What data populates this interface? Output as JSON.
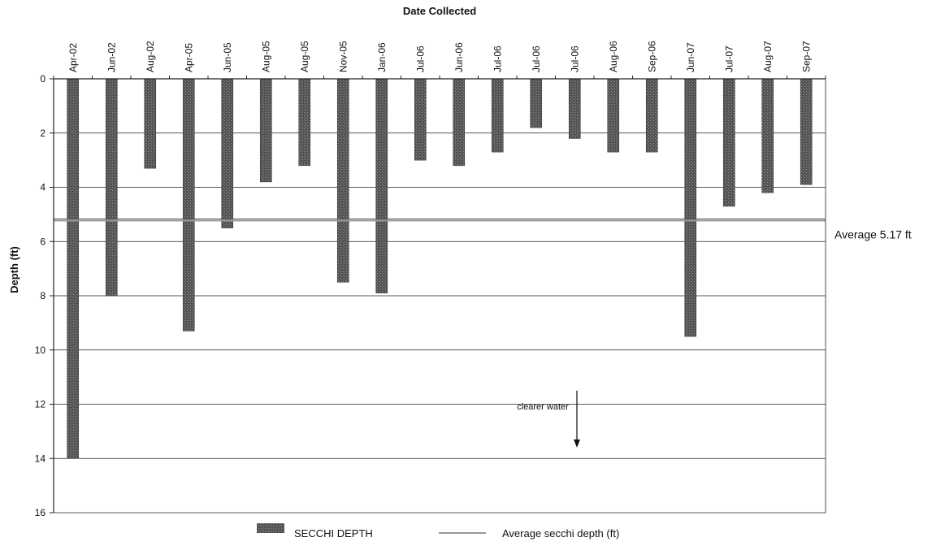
{
  "chart_data": {
    "type": "bar",
    "orientation": "vertical-hanging",
    "title": "",
    "xlabel": "Date Collected",
    "ylabel": "Depth (ft)",
    "ylim": [
      0,
      16
    ],
    "y_inverted": true,
    "y_ticks": [
      "0",
      "2",
      "4",
      "6",
      "8",
      "10",
      "12",
      "14",
      "16"
    ],
    "x_axis_position": "top",
    "grid": "horizontal",
    "categories": [
      "Apr-02",
      "Jun-02",
      "Aug-02",
      "Apr-05",
      "Jun-05",
      "Aug-05",
      "Aug-05",
      "Nov-05",
      "Jan-06",
      "Jul-06",
      "Jun-06",
      "Jul-06",
      "Jul-06",
      "Jul-06",
      "Aug-06",
      "Sep-06",
      "Jun-07",
      "Jul-07",
      "Aug-07",
      "Sep-07"
    ],
    "series": [
      {
        "name": "SECCHI DEPTH",
        "values": [
          14.0,
          8.0,
          3.3,
          9.3,
          5.5,
          3.8,
          3.2,
          7.5,
          7.9,
          3.0,
          3.2,
          2.7,
          1.8,
          2.2,
          2.7,
          2.7,
          9.5,
          4.7,
          4.2,
          3.9
        ],
        "color": "#555555"
      }
    ],
    "reference_line": {
      "name": "Average secchi depth (ft)",
      "value": 5.17,
      "label": "Average 5.17 ft",
      "color": "#777777"
    },
    "annotation": {
      "text": "clearer water",
      "arrow_from": 11.5,
      "arrow_to": 13.6
    },
    "legend": {
      "placement": "bottom-center",
      "bar_entry": "SECCHI DEPTH",
      "line_entry": "Average secchi depth (ft)"
    }
  }
}
